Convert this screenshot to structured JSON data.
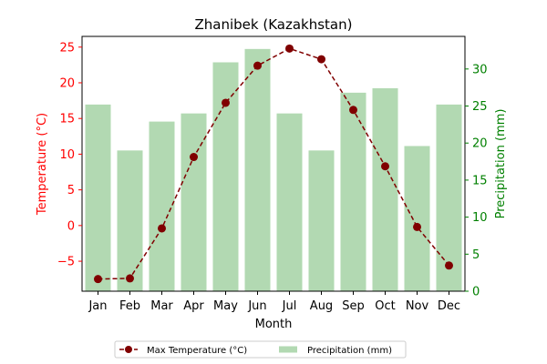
{
  "chart_data": {
    "type": "bar+line",
    "title": "Zhanibek (Kazakhstan)",
    "xlabel": "Month",
    "categories": [
      "Jan",
      "Feb",
      "Mar",
      "Apr",
      "May",
      "Jun",
      "Jul",
      "Aug",
      "Sep",
      "Oct",
      "Nov",
      "Dec"
    ],
    "left_axis": {
      "label": "Temperature (°C)",
      "color": "#ff0000",
      "ylim": [
        -9.2,
        26.5
      ],
      "ticks": [
        -5,
        0,
        5,
        10,
        15,
        20,
        25
      ]
    },
    "right_axis": {
      "label": "Precipitation (mm)",
      "color": "#008000",
      "ylim": [
        0,
        34.4
      ],
      "ticks": [
        0,
        5,
        10,
        15,
        20,
        25,
        30
      ]
    },
    "series": [
      {
        "name": "Max Temperature (°C)",
        "kind": "line",
        "axis": "left",
        "color": "#800000",
        "values": [
          -7.5,
          -7.4,
          -0.4,
          9.6,
          17.2,
          22.4,
          24.8,
          23.3,
          16.2,
          8.3,
          -0.2,
          -5.6
        ]
      },
      {
        "name": "Precipitation (mm)",
        "kind": "bar",
        "axis": "right",
        "color": "#b2d9b2",
        "values": [
          25.2,
          19.0,
          22.9,
          24.0,
          30.9,
          32.7,
          24.0,
          19.0,
          26.8,
          27.4,
          19.6,
          25.2
        ]
      }
    ],
    "legend": {
      "placement": "bottom-center",
      "columns": 2
    },
    "grid": false
  }
}
